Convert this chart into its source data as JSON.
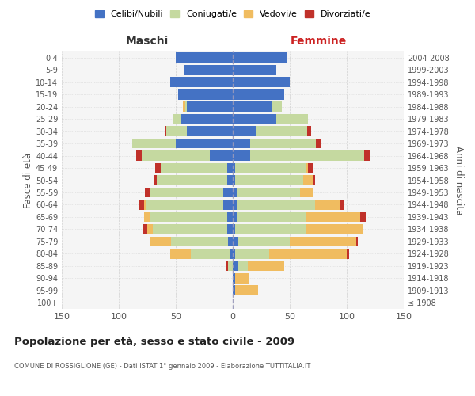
{
  "age_groups": [
    "100+",
    "95-99",
    "90-94",
    "85-89",
    "80-84",
    "75-79",
    "70-74",
    "65-69",
    "60-64",
    "55-59",
    "50-54",
    "45-49",
    "40-44",
    "35-39",
    "30-34",
    "25-29",
    "20-24",
    "15-19",
    "10-14",
    "5-9",
    "0-4"
  ],
  "birth_years": [
    "≤ 1908",
    "1909-1913",
    "1914-1918",
    "1919-1923",
    "1924-1928",
    "1929-1933",
    "1934-1938",
    "1939-1943",
    "1944-1948",
    "1949-1953",
    "1954-1958",
    "1959-1963",
    "1964-1968",
    "1969-1973",
    "1974-1978",
    "1979-1983",
    "1984-1988",
    "1989-1993",
    "1994-1998",
    "1999-2003",
    "2004-2008"
  ],
  "males": {
    "celibi": [
      0,
      0,
      0,
      0,
      2,
      4,
      5,
      5,
      8,
      8,
      5,
      5,
      20,
      50,
      40,
      45,
      40,
      48,
      55,
      43,
      50
    ],
    "coniugati": [
      0,
      0,
      0,
      4,
      35,
      50,
      65,
      68,
      68,
      65,
      62,
      58,
      60,
      38,
      18,
      8,
      2,
      0,
      0,
      0,
      0
    ],
    "vedovi": [
      0,
      0,
      0,
      0,
      18,
      18,
      5,
      5,
      2,
      0,
      0,
      0,
      0,
      0,
      0,
      0,
      2,
      0,
      0,
      0,
      0
    ],
    "divorziati": [
      0,
      0,
      0,
      2,
      0,
      0,
      4,
      0,
      4,
      4,
      2,
      5,
      5,
      0,
      2,
      0,
      0,
      0,
      0,
      0,
      0
    ]
  },
  "females": {
    "nubili": [
      0,
      2,
      2,
      5,
      2,
      5,
      2,
      4,
      4,
      4,
      2,
      2,
      15,
      15,
      20,
      38,
      35,
      45,
      50,
      38,
      48
    ],
    "coniugate": [
      0,
      0,
      0,
      8,
      30,
      45,
      62,
      60,
      68,
      55,
      60,
      62,
      100,
      58,
      45,
      28,
      8,
      0,
      0,
      0,
      0
    ],
    "vedove": [
      0,
      20,
      12,
      32,
      68,
      58,
      50,
      48,
      22,
      12,
      8,
      2,
      0,
      0,
      0,
      0,
      0,
      0,
      0,
      0,
      0
    ],
    "divorziate": [
      0,
      0,
      0,
      0,
      2,
      2,
      0,
      5,
      4,
      0,
      2,
      5,
      5,
      4,
      4,
      0,
      0,
      0,
      0,
      0,
      0
    ]
  },
  "colors": {
    "celibi": "#4472C4",
    "coniugati": "#c5d9a0",
    "vedovi": "#f0bc60",
    "divorziati": "#c0312a"
  },
  "title": "Popolazione per età, sesso e stato civile - 2009",
  "subtitle": "COMUNE DI ROSSIGLIONE (GE) - Dati ISTAT 1° gennaio 2009 - Elaborazione TUTTITALIA.IT",
  "xlabel_left": "Maschi",
  "xlabel_right": "Femmine",
  "ylabel_left": "Fasce di età",
  "ylabel_right": "Anni di nascita",
  "xlim": 150,
  "legend_labels": [
    "Celibi/Nubili",
    "Coniugati/e",
    "Vedovi/e",
    "Divorziati/e"
  ],
  "bg_color": "#ffffff",
  "grid_color": "#cccccc",
  "plot_bg": "#f5f5f5"
}
